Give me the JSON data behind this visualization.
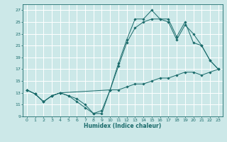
{
  "xlabel": "Humidex (Indice chaleur)",
  "background_color": "#cce8e8",
  "grid_color": "#ffffff",
  "line_color": "#1a6b6b",
  "xlim": [
    -0.5,
    23.5
  ],
  "ylim": [
    9,
    28
  ],
  "xticks": [
    0,
    1,
    2,
    3,
    4,
    5,
    6,
    7,
    8,
    9,
    10,
    11,
    12,
    13,
    14,
    15,
    16,
    17,
    18,
    19,
    20,
    21,
    22,
    23
  ],
  "yticks": [
    9,
    11,
    13,
    15,
    17,
    19,
    21,
    23,
    25,
    27
  ],
  "line1_x": [
    0,
    1,
    2,
    3,
    4,
    5,
    6,
    7,
    8,
    9,
    10,
    11,
    12,
    13,
    14,
    15,
    16,
    17,
    18,
    19,
    20,
    21,
    22,
    23
  ],
  "line1_y": [
    13.5,
    12.8,
    11.5,
    12.5,
    13.0,
    12.5,
    11.5,
    10.5,
    9.5,
    9.5,
    13.5,
    18.0,
    22.0,
    25.5,
    25.5,
    27.0,
    25.5,
    25.5,
    22.5,
    25.0,
    21.5,
    21.0,
    18.5,
    17.0
  ],
  "line2_x": [
    0,
    1,
    2,
    3,
    4,
    10,
    11,
    12,
    13,
    14,
    15,
    16,
    17,
    18,
    19,
    20,
    21,
    22,
    23
  ],
  "line2_y": [
    13.5,
    12.8,
    11.5,
    12.5,
    13.0,
    13.5,
    17.5,
    21.5,
    24.0,
    25.0,
    25.5,
    25.5,
    25.0,
    22.0,
    24.5,
    23.0,
    21.0,
    18.5,
    17.0
  ],
  "line3_x": [
    0,
    1,
    2,
    3,
    4,
    5,
    6,
    7,
    8,
    9,
    10,
    11,
    12,
    13,
    14,
    15,
    16,
    17,
    18,
    19,
    20,
    21,
    22,
    23
  ],
  "line3_y": [
    13.5,
    12.8,
    11.5,
    12.5,
    13.0,
    12.5,
    12.0,
    11.0,
    9.5,
    10.0,
    13.5,
    13.5,
    14.0,
    14.5,
    14.5,
    15.0,
    15.5,
    15.5,
    16.0,
    16.5,
    16.5,
    16.0,
    16.5,
    17.0
  ]
}
